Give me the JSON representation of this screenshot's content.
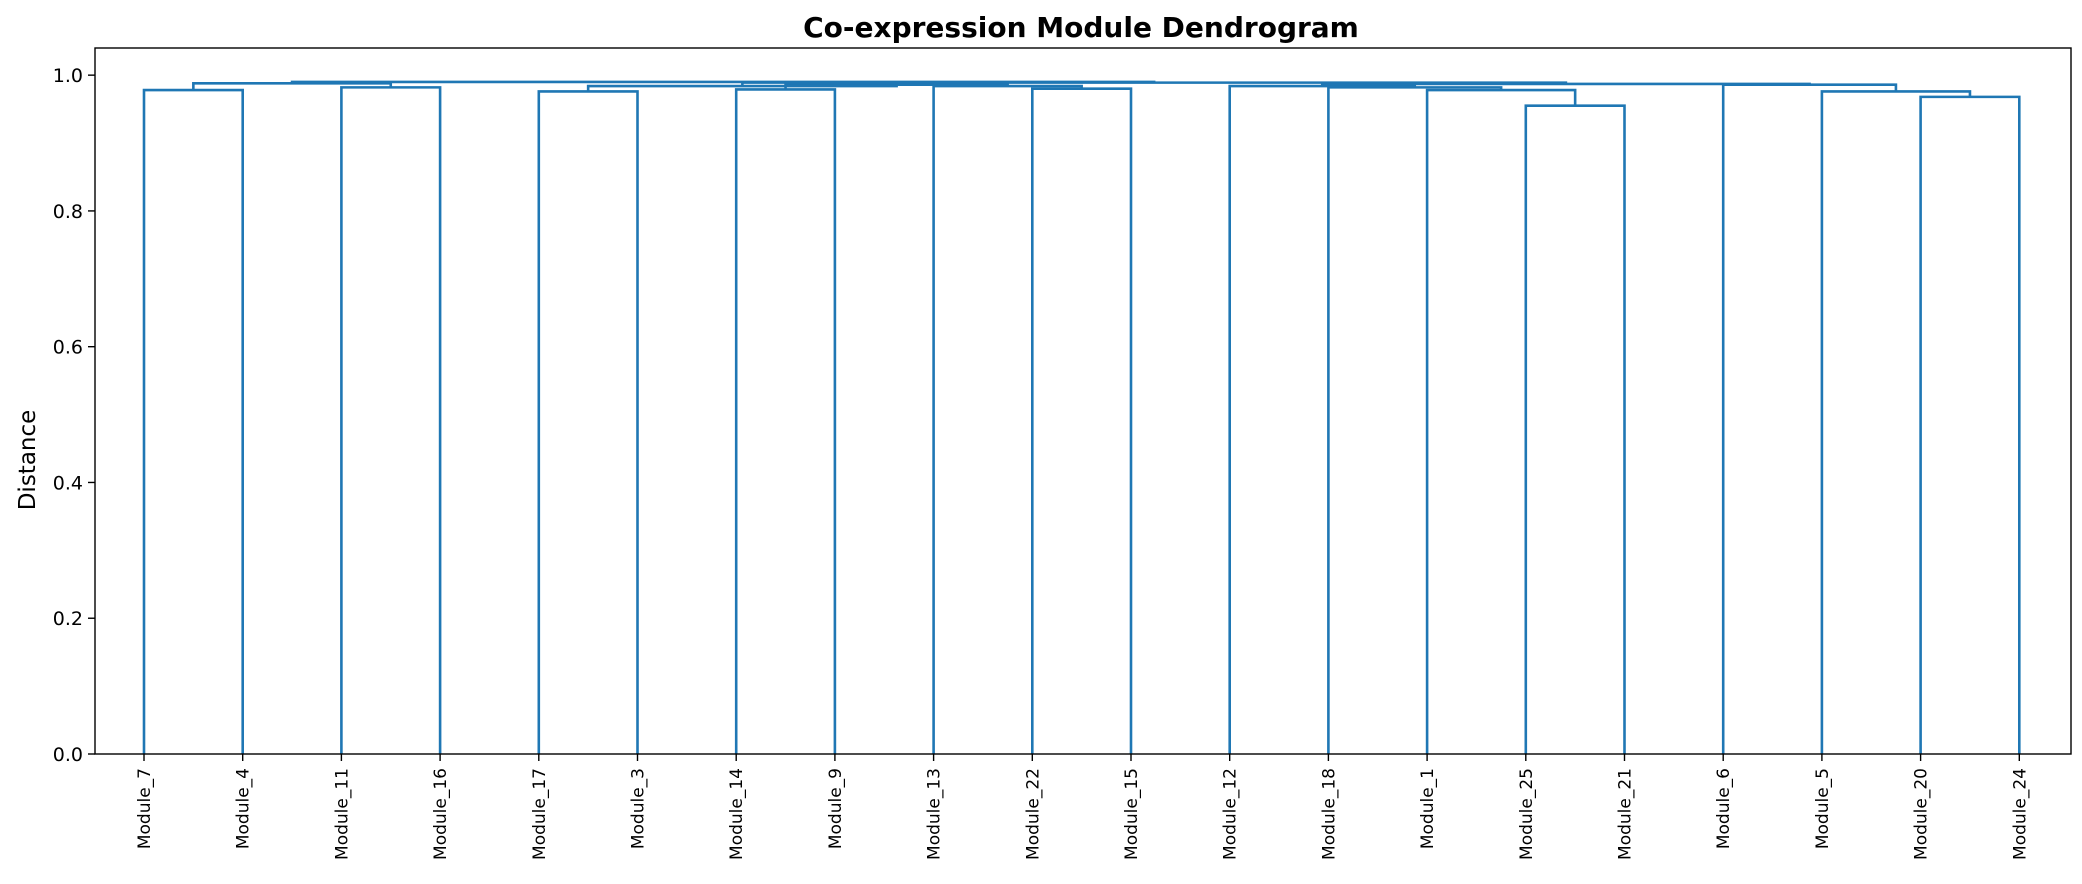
{
  "chart_data": {
    "type": "dendrogram",
    "title": "Co-expression Module Dendrogram",
    "xlabel": "",
    "ylabel": "Distance",
    "ylim": [
      0,
      1.04
    ],
    "yticks": [
      "0.0",
      "0.2",
      "0.4",
      "0.6",
      "0.8",
      "1.0"
    ],
    "yticks_values": [
      0,
      0.2,
      0.4,
      0.6,
      0.8,
      1.0
    ],
    "grid": false,
    "link_color": "#1f77b4",
    "leaves": [
      "Module_7",
      "Module_4",
      "Module_11",
      "Module_16",
      "Module_17",
      "Module_3",
      "Module_14",
      "Module_9",
      "Module_13",
      "Module_22",
      "Module_15",
      "Module_12",
      "Module_18",
      "Module_1",
      "Module_25",
      "Module_21",
      "Module_6",
      "Module_5",
      "Module_20",
      "Module_24"
    ],
    "merges": [
      {
        "left": "Module_7",
        "right": "Module_4",
        "height": 0.978
      },
      {
        "left": "Module_11",
        "right": "Module_16",
        "height": 0.982
      },
      {
        "left": "Module_17",
        "right": "Module_3",
        "height": 0.976
      },
      {
        "left": "Module_14",
        "right": "Module_9",
        "height": 0.979
      },
      {
        "left": "Module_22",
        "right": "Module_15",
        "height": 0.98
      },
      {
        "left": "Module_25",
        "right": "Module_21",
        "height": 0.955
      },
      {
        "left": "Module_20",
        "right": "Module_24",
        "height": 0.968
      },
      {
        "left": "Module_7|Module_4",
        "right": "Module_11|Module_16",
        "height": 0.988
      },
      {
        "left": "Module_13",
        "right": "Module_22|Module_15",
        "height": 0.984
      },
      {
        "left": "Module_14|Module_9",
        "right": "Module_13|Module_22|Module_15",
        "height": 0.986
      },
      {
        "left": "Module_17|Module_3",
        "right": "Module_14|Module_9|Module_13|Module_22|Module_15",
        "height": 0.984
      },
      {
        "left": "Module_1",
        "right": "Module_25|Module_21",
        "height": 0.978
      },
      {
        "left": "Module_18",
        "right": "Module_1|Module_25|Module_21",
        "height": 0.982
      },
      {
        "left": "Module_12",
        "right": "Module_18|Module_1|Module_25|Module_21",
        "height": 0.984
      },
      {
        "left": "Module_5",
        "right": "Module_20|Module_24",
        "height": 0.976
      },
      {
        "left": "Module_6",
        "right": "Module_5|Module_20|Module_24",
        "height": 0.986
      },
      {
        "left": "Module_12|Module_18|Module_1|Module_25|Module_21",
        "right": "Module_6|Module_5|Module_20|Module_24",
        "height": 0.987
      },
      {
        "left": "Module_17|Module_3|Module_14|Module_9|Module_13|Module_22|Module_15",
        "right": "Module_12|Module_18|Module_1|Module_25|Module_21|Module_6|Module_5|Module_20|Module_24",
        "height": 0.989
      },
      {
        "left": "Module_7|Module_4|Module_11|Module_16",
        "right": "Module_17|Module_3|Module_14|Module_9|Module_13|Module_22|Module_15|Module_12|Module_18|Module_1|Module_25|Module_21|Module_6|Module_5|Module_20|Module_24",
        "height": 0.99
      }
    ]
  }
}
